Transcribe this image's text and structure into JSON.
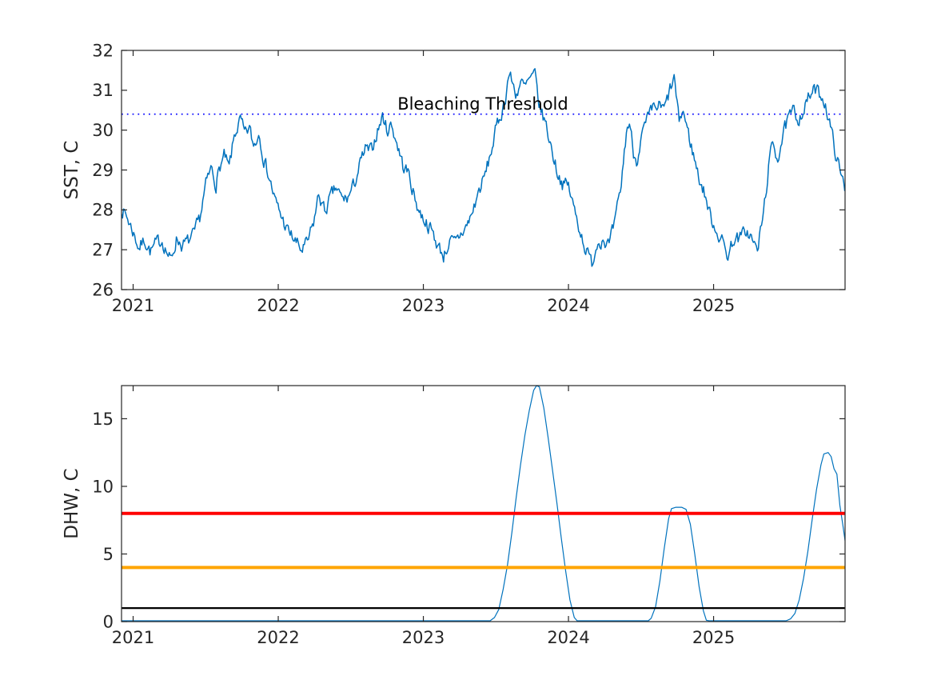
{
  "figure": {
    "background": "#ffffff",
    "series_color": "#0072BD",
    "axis_color": "#262626"
  },
  "chart_data": [
    {
      "type": "line",
      "panel": "sst",
      "ylabel": "SST, C",
      "xlabel": "",
      "xlim": [
        2020.92,
        2025.906
      ],
      "ylim": [
        26,
        32
      ],
      "yticks": [
        26,
        27,
        28,
        29,
        30,
        31,
        32
      ],
      "xticks": [
        2021,
        2022,
        2023,
        2024,
        2025
      ],
      "grid": false,
      "annotation": {
        "text": "Bleaching Threshold",
        "x": 2023.41,
        "y": 30.66,
        "color": "#000000"
      },
      "threshold": {
        "name": "bleaching-threshold",
        "value": 30.4,
        "color": "#0000FF",
        "style": "dotted",
        "width": 1.6
      },
      "series": [
        {
          "name": "SST",
          "color": "#0072BD",
          "width": 1.5,
          "noise": {
            "seed": 7,
            "amp": 0.16,
            "ar": 0.45,
            "step": 0.007,
            "min": 26.55,
            "max": 31.6
          },
          "anchors": [
            [
              2020.92,
              28.05
            ],
            [
              2020.96,
              27.8
            ],
            [
              2021.0,
              27.45
            ],
            [
              2021.04,
              27.05
            ],
            [
              2021.08,
              27.25
            ],
            [
              2021.12,
              26.95
            ],
            [
              2021.16,
              27.15
            ],
            [
              2021.2,
              27.25
            ],
            [
              2021.26,
              26.7
            ],
            [
              2021.3,
              27.3
            ],
            [
              2021.34,
              27.1
            ],
            [
              2021.38,
              27.2
            ],
            [
              2021.42,
              27.35
            ],
            [
              2021.46,
              27.8
            ],
            [
              2021.5,
              28.6
            ],
            [
              2021.54,
              29.05
            ],
            [
              2021.57,
              28.65
            ],
            [
              2021.6,
              29.1
            ],
            [
              2021.63,
              29.35
            ],
            [
              2021.66,
              29.0
            ],
            [
              2021.7,
              29.9
            ],
            [
              2021.74,
              30.25
            ],
            [
              2021.77,
              29.85
            ],
            [
              2021.8,
              30.05
            ],
            [
              2021.83,
              29.6
            ],
            [
              2021.87,
              29.95
            ],
            [
              2021.9,
              29.3
            ],
            [
              2021.94,
              28.8
            ],
            [
              2021.98,
              28.2
            ],
            [
              2022.02,
              27.85
            ],
            [
              2022.06,
              27.5
            ],
            [
              2022.1,
              27.3
            ],
            [
              2022.16,
              26.98
            ],
            [
              2022.2,
              27.15
            ],
            [
              2022.24,
              27.6
            ],
            [
              2022.28,
              28.4
            ],
            [
              2022.32,
              27.95
            ],
            [
              2022.36,
              28.3
            ],
            [
              2022.4,
              28.55
            ],
            [
              2022.44,
              28.25
            ],
            [
              2022.48,
              28.3
            ],
            [
              2022.52,
              28.6
            ],
            [
              2022.56,
              29.1
            ],
            [
              2022.6,
              29.5
            ],
            [
              2022.64,
              29.45
            ],
            [
              2022.68,
              29.95
            ],
            [
              2022.72,
              30.35
            ],
            [
              2022.75,
              30.0
            ],
            [
              2022.78,
              30.15
            ],
            [
              2022.82,
              29.65
            ],
            [
              2022.86,
              29.1
            ],
            [
              2022.9,
              28.9
            ],
            [
              2022.94,
              28.3
            ],
            [
              2022.98,
              27.9
            ],
            [
              2023.02,
              27.7
            ],
            [
              2023.06,
              27.45
            ],
            [
              2023.1,
              27.1
            ],
            [
              2023.14,
              26.85
            ],
            [
              2023.18,
              27.2
            ],
            [
              2023.22,
              27.15
            ],
            [
              2023.26,
              27.4
            ],
            [
              2023.3,
              27.6
            ],
            [
              2023.34,
              27.95
            ],
            [
              2023.38,
              28.45
            ],
            [
              2023.42,
              28.8
            ],
            [
              2023.46,
              29.35
            ],
            [
              2023.5,
              30.0
            ],
            [
              2023.53,
              30.35
            ],
            [
              2023.56,
              30.7
            ],
            [
              2023.59,
              31.45
            ],
            [
              2023.62,
              31.1
            ],
            [
              2023.64,
              30.9
            ],
            [
              2023.67,
              31.2
            ],
            [
              2023.7,
              31.05
            ],
            [
              2023.73,
              31.25
            ],
            [
              2023.77,
              31.35
            ],
            [
              2023.8,
              30.6
            ],
            [
              2023.84,
              30.2
            ],
            [
              2023.88,
              29.6
            ],
            [
              2023.92,
              29.0
            ],
            [
              2023.96,
              28.65
            ],
            [
              2024.0,
              28.6
            ],
            [
              2024.04,
              28.0
            ],
            [
              2024.08,
              27.5
            ],
            [
              2024.12,
              27.0
            ],
            [
              2024.16,
              26.65
            ],
            [
              2024.2,
              27.2
            ],
            [
              2024.24,
              27.3
            ],
            [
              2024.28,
              27.1
            ],
            [
              2024.32,
              27.65
            ],
            [
              2024.36,
              28.5
            ],
            [
              2024.4,
              30.0
            ],
            [
              2024.42,
              30.2
            ],
            [
              2024.45,
              29.4
            ],
            [
              2024.47,
              29.25
            ],
            [
              2024.5,
              29.8
            ],
            [
              2024.54,
              30.2
            ],
            [
              2024.58,
              30.5
            ],
            [
              2024.62,
              30.6
            ],
            [
              2024.66,
              30.5
            ],
            [
              2024.7,
              31.0
            ],
            [
              2024.73,
              31.3
            ],
            [
              2024.76,
              30.2
            ],
            [
              2024.79,
              30.5
            ],
            [
              2024.82,
              30.0
            ],
            [
              2024.86,
              29.4
            ],
            [
              2024.9,
              28.8
            ],
            [
              2024.94,
              28.4
            ],
            [
              2024.98,
              27.8
            ],
            [
              2025.02,
              27.5
            ],
            [
              2025.06,
              27.2
            ],
            [
              2025.1,
              26.85
            ],
            [
              2025.14,
              27.3
            ],
            [
              2025.18,
              27.25
            ],
            [
              2025.22,
              27.5
            ],
            [
              2025.26,
              27.3
            ],
            [
              2025.3,
              26.95
            ],
            [
              2025.34,
              27.8
            ],
            [
              2025.38,
              29.1
            ],
            [
              2025.41,
              29.7
            ],
            [
              2025.44,
              29.3
            ],
            [
              2025.48,
              29.9
            ],
            [
              2025.52,
              30.3
            ],
            [
              2025.55,
              30.45
            ],
            [
              2025.58,
              30.3
            ],
            [
              2025.62,
              30.5
            ],
            [
              2025.66,
              30.85
            ],
            [
              2025.7,
              31.0
            ],
            [
              2025.73,
              30.9
            ],
            [
              2025.76,
              30.8
            ],
            [
              2025.79,
              30.35
            ],
            [
              2025.82,
              29.8
            ],
            [
              2025.85,
              29.3
            ],
            [
              2025.88,
              28.8
            ],
            [
              2025.91,
              28.55
            ]
          ]
        }
      ]
    },
    {
      "type": "line",
      "panel": "dhw",
      "ylabel": "DHW, C",
      "xlabel": "",
      "xlim": [
        2020.92,
        2025.906
      ],
      "ylim": [
        0,
        17.45
      ],
      "yticks": [
        0,
        5,
        10,
        15
      ],
      "xticks": [
        2021,
        2022,
        2023,
        2024,
        2025
      ],
      "grid": false,
      "hlines": [
        {
          "value": 8,
          "color": "#FF0000",
          "width": 4
        },
        {
          "value": 4,
          "color": "#FFA500",
          "width": 4
        },
        {
          "value": 1,
          "color": "#000000",
          "width": 2.2
        }
      ],
      "series": [
        {
          "name": "DHW",
          "color": "#0072BD",
          "width": 1.2,
          "anchors": [
            [
              2020.92,
              0
            ],
            [
              2021.5,
              0
            ],
            [
              2022.5,
              0
            ],
            [
              2023.2,
              0
            ],
            [
              2023.46,
              0
            ],
            [
              2023.49,
              0.3
            ],
            [
              2023.52,
              0.9
            ],
            [
              2023.55,
              2.4
            ],
            [
              2023.58,
              4.2
            ],
            [
              2023.61,
              6.6
            ],
            [
              2023.64,
              9.2
            ],
            [
              2023.67,
              11.6
            ],
            [
              2023.7,
              13.8
            ],
            [
              2023.73,
              15.6
            ],
            [
              2023.76,
              17.1
            ],
            [
              2023.78,
              17.45
            ],
            [
              2023.8,
              17.35
            ],
            [
              2023.83,
              15.8
            ],
            [
              2023.86,
              13.6
            ],
            [
              2023.89,
              11.2
            ],
            [
              2023.92,
              8.8
            ],
            [
              2023.95,
              6.2
            ],
            [
              2023.98,
              3.8
            ],
            [
              2024.01,
              1.6
            ],
            [
              2024.04,
              0.3
            ],
            [
              2024.06,
              0
            ],
            [
              2024.3,
              0
            ],
            [
              2024.55,
              0
            ],
            [
              2024.57,
              0.25
            ],
            [
              2024.6,
              1.1
            ],
            [
              2024.63,
              3.0
            ],
            [
              2024.66,
              5.4
            ],
            [
              2024.69,
              7.6
            ],
            [
              2024.71,
              8.35
            ],
            [
              2024.74,
              8.45
            ],
            [
              2024.78,
              8.45
            ],
            [
              2024.81,
              8.3
            ],
            [
              2024.84,
              7.2
            ],
            [
              2024.87,
              5.0
            ],
            [
              2024.9,
              2.6
            ],
            [
              2024.93,
              0.8
            ],
            [
              2024.95,
              0.1
            ],
            [
              2024.97,
              0
            ],
            [
              2025.2,
              0
            ],
            [
              2025.5,
              0
            ],
            [
              2025.53,
              0.2
            ],
            [
              2025.56,
              0.6
            ],
            [
              2025.59,
              1.6
            ],
            [
              2025.62,
              3.2
            ],
            [
              2025.65,
              5.2
            ],
            [
              2025.68,
              7.6
            ],
            [
              2025.71,
              9.8
            ],
            [
              2025.74,
              11.6
            ],
            [
              2025.76,
              12.4
            ],
            [
              2025.79,
              12.5
            ],
            [
              2025.81,
              12.2
            ],
            [
              2025.83,
              11.3
            ],
            [
              2025.85,
              10.9
            ],
            [
              2025.87,
              8.6
            ],
            [
              2025.89,
              7.2
            ],
            [
              2025.91,
              5.7
            ]
          ]
        }
      ]
    }
  ]
}
